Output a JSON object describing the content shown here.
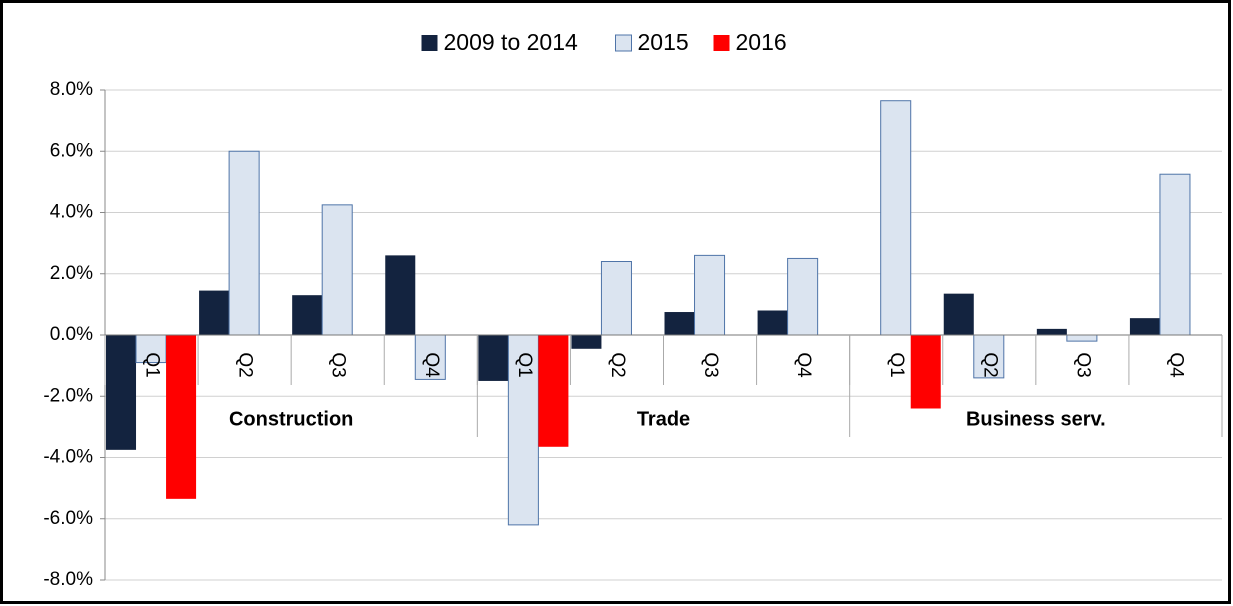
{
  "chart_data": {
    "type": "bar",
    "categories": [
      "Q1",
      "Q2",
      "Q3",
      "Q4",
      "Q1",
      "Q2",
      "Q3",
      "Q4",
      "Q1",
      "Q2",
      "Q3",
      "Q4"
    ],
    "groups": [
      "Construction",
      "Trade",
      "Business serv."
    ],
    "series": [
      {
        "name": "2009 to 2014",
        "color": "#13233f",
        "values": [
          -3.75,
          1.45,
          1.3,
          2.6,
          -1.5,
          -0.45,
          0.75,
          0.8,
          0.0,
          1.35,
          0.2,
          0.55
        ]
      },
      {
        "name": "2015",
        "color": "#dbe4f0",
        "values": [
          -0.9,
          6.0,
          4.25,
          -1.45,
          -6.2,
          2.4,
          2.6,
          2.5,
          7.65,
          -1.4,
          -0.2,
          5.25
        ]
      },
      {
        "name": "2016",
        "color": "#ff0000",
        "values": [
          -5.35,
          null,
          null,
          null,
          -3.65,
          null,
          null,
          null,
          -2.4,
          null,
          null,
          null
        ]
      }
    ],
    "ylim": [
      -8,
      8
    ],
    "yticks": [
      {
        "value": -8,
        "label": "-8.0%"
      },
      {
        "value": -6,
        "label": "-6.0%"
      },
      {
        "value": -4,
        "label": "-4.0%"
      },
      {
        "value": -2,
        "label": "-2.0%"
      },
      {
        "value": 0,
        "label": "0.0%"
      },
      {
        "value": 2,
        "label": "2.0%"
      },
      {
        "value": 4,
        "label": "4.0%"
      },
      {
        "value": 6,
        "label": "6.0%"
      },
      {
        "value": 8,
        "label": "8.0%"
      }
    ],
    "grid": true
  }
}
